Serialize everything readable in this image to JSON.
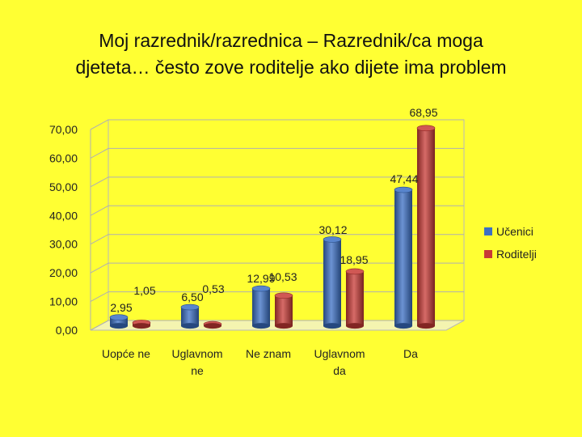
{
  "title_line1": "Moj razrednik/razrednica – Razrednik/ca moga",
  "title_line2": "djeteta… često zove roditelje ako dijete ima problem",
  "chart_data": {
    "type": "bar",
    "title": "Moj razrednik/razrednica – Razrednik/ca moga djeteta… često zove roditelje ako dijete ima problem",
    "categories": [
      [
        "Uopće ne"
      ],
      [
        "Uglavnom",
        "ne"
      ],
      [
        "Ne znam"
      ],
      [
        "Uglavnom",
        "da"
      ],
      [
        "Da"
      ]
    ],
    "series": [
      {
        "name": "Učenici",
        "color": "#3b6fc4",
        "values": [
          2.95,
          6.5,
          12.99,
          30.12,
          47.44
        ],
        "labels": [
          "2,95",
          "6,50",
          "12,99",
          "30,12",
          "47,44"
        ]
      },
      {
        "name": "Roditelji",
        "color": "#c83a36",
        "values": [
          1.05,
          0.53,
          10.53,
          18.95,
          68.95
        ],
        "labels": [
          "1,05",
          "0,53",
          "10,53",
          "18,95",
          "68,95"
        ]
      }
    ],
    "yticks": [
      "0,00",
      "10,00",
      "20,00",
      "30,00",
      "40,00",
      "50,00",
      "60,00",
      "70,00"
    ],
    "ylim": [
      0,
      70
    ],
    "grid": true,
    "legend": "right"
  }
}
